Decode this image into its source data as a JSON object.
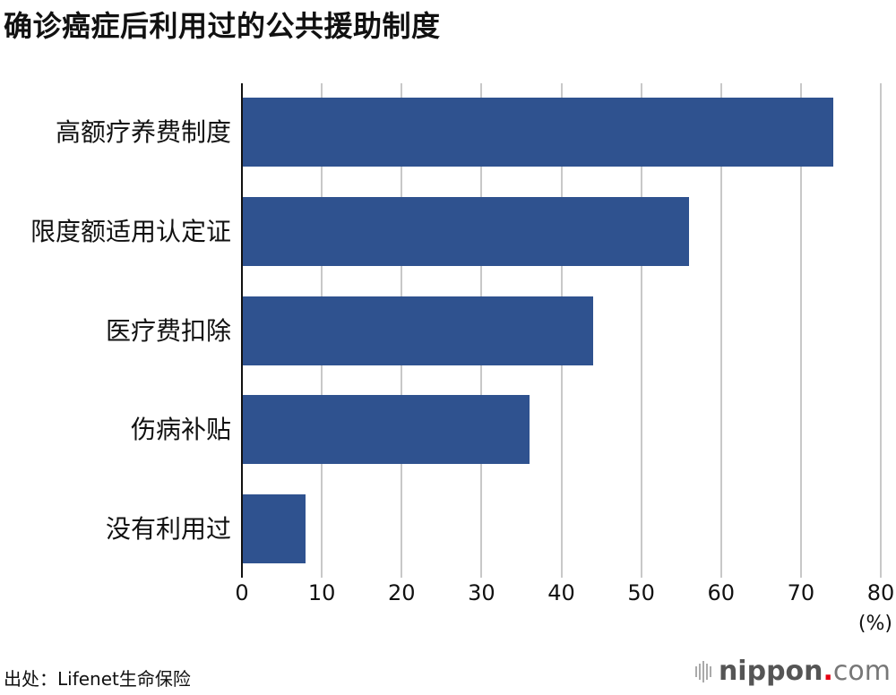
{
  "title": "确诊癌症后利用过的公共援助制度",
  "chart_data": {
    "type": "bar",
    "orientation": "horizontal",
    "title": "确诊癌症后利用过的公共援助制度",
    "categories": [
      "高额疗养费制度",
      "限度额适用认定证",
      "医疗费扣除",
      "伤病补贴",
      "没有利用过"
    ],
    "values": [
      74,
      56,
      44,
      36,
      8
    ],
    "xlabel": "(%)",
    "ylabel": "",
    "xlim": [
      0,
      80
    ],
    "xticks": [
      "0",
      "10",
      "20",
      "30",
      "40",
      "50",
      "60",
      "70",
      "80"
    ],
    "grid": true,
    "bar_color": "#2f528f",
    "legend": null
  },
  "axis": {
    "unit": "(%)"
  },
  "source": "出处：Lifenet生命保险",
  "logo": {
    "bold": "nippon",
    "dot": ".",
    "rest": "com"
  }
}
